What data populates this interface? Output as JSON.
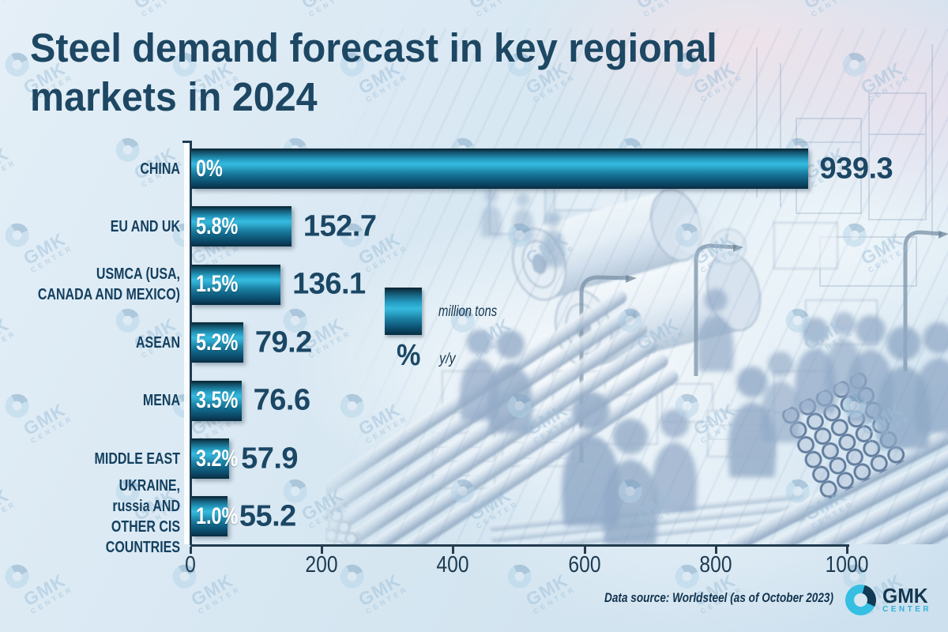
{
  "title": "Steel demand forecast in key regional\nmarkets in 2024",
  "chart_data": {
    "type": "bar",
    "orientation": "horizontal",
    "title": "Steel demand forecast in key regional markets in 2024",
    "categories": [
      "CHINA",
      "EU AND UK",
      "USMCA (USA, CANADA AND MEXICO)",
      "ASEAN",
      "MENA",
      "MIDDLE EAST",
      "UKRAINE, russia AND OTHER CIS COUNTRIES"
    ],
    "series": [
      {
        "name": "demand, million tons",
        "values": [
          939.3,
          152.7,
          136.1,
          79.2,
          76.6,
          57.9,
          55.2
        ]
      },
      {
        "name": "change % y/y",
        "values": [
          0,
          5.8,
          1.5,
          5.2,
          3.5,
          3.2,
          1.0
        ]
      }
    ],
    "xlim": [
      0,
      1000
    ],
    "x_ticks": [
      0,
      200,
      400,
      600,
      800,
      1000
    ],
    "grid": false,
    "legend_position": "center",
    "bar_color": "#1d86a9"
  },
  "bars": [
    {
      "label": "CHINA",
      "pct": "0%",
      "value": "939.3"
    },
    {
      "label": "EU AND UK",
      "pct": "5.8%",
      "value": "152.7"
    },
    {
      "label": "USMCA (USA,\nCANADA AND MEXICO)",
      "pct": "1.5%",
      "value": "136.1"
    },
    {
      "label": "ASEAN",
      "pct": "5.2%",
      "value": "79.2"
    },
    {
      "label": "MENA",
      "pct": "3.5%",
      "value": "76.6"
    },
    {
      "label": "MIDDLE EAST",
      "pct": "3.2%",
      "value": "57.9"
    },
    {
      "label": "UKRAINE,\nrussia AND\nOTHER CIS COUNTRIES",
      "pct": "1.0%",
      "value": "55.2"
    }
  ],
  "axis": {
    "ticks": [
      "0",
      "200",
      "400",
      "600",
      "800",
      "1000"
    ]
  },
  "legend": {
    "bar_label": "million tons",
    "pct_symbol": "%",
    "pct_label": "y/y"
  },
  "footer": {
    "source": "Data source: Worldsteel (as of October 2023)"
  },
  "logo": {
    "name": "GMK",
    "sub": "CENTER"
  },
  "watermark": {
    "name": "GMK",
    "sub": "CENTER"
  },
  "colors": {
    "title": "#1d4763",
    "value_text": "#1b4765",
    "bar_bright": "#36badf",
    "bar_dark": "#0a3e5a",
    "accent_cyan": "#35bfe2",
    "navy": "#123a54"
  }
}
